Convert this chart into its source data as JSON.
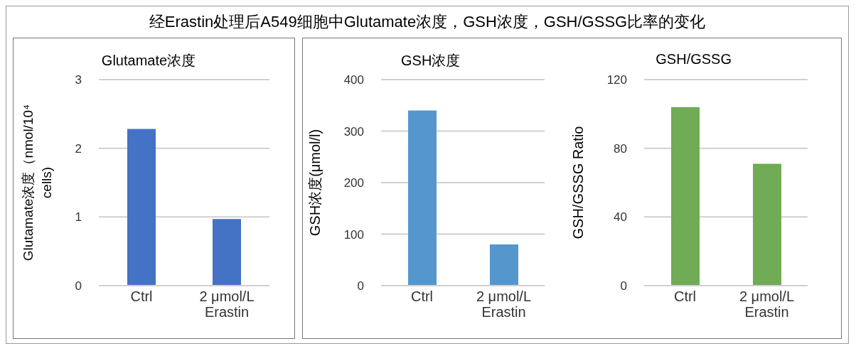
{
  "chart_data": [
    {
      "type": "bar",
      "title": "Glutamate浓度",
      "annotations": [
        "经Erastin处理后A549细胞中Glutamate浓度，GSH浓度，GSH/GSSG比率的变化"
      ],
      "ylabel": "Glutamate浓度（nmol/10⁴ cells)",
      "categories": [
        "Ctrl",
        "2 μmol/L\nErastin"
      ],
      "values": [
        2.28,
        0.97
      ],
      "color": "#4472c4",
      "ylim": [
        0,
        3
      ],
      "yticks": [
        0,
        1,
        2,
        3
      ],
      "grid": "y"
    },
    {
      "type": "bar",
      "title": "GSH浓度",
      "ylabel": "GSH浓度(μmol/l)",
      "categories": [
        "Ctrl",
        "2 μmol/L\nErastin"
      ],
      "values": [
        340,
        80
      ],
      "color": "#5597cd",
      "ylim": [
        0,
        400
      ],
      "yticks": [
        0,
        100,
        200,
        300,
        400
      ],
      "grid": "y"
    },
    {
      "type": "bar",
      "title": "GSH/GSSG",
      "ylabel": "GSH/GSSG Ratio",
      "categories": [
        "Ctrl",
        "2 μmol/L\nErastin"
      ],
      "values": [
        104,
        71
      ],
      "color": "#70ab55",
      "ylim": [
        0,
        120
      ],
      "yticks": [
        0,
        40,
        80,
        120
      ],
      "grid": "y"
    }
  ]
}
